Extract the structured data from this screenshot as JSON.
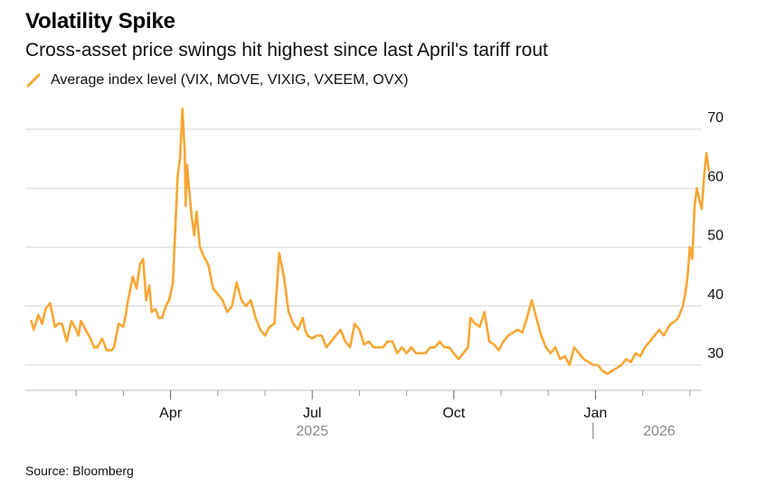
{
  "chart_data": {
    "type": "line",
    "title": "Volatility Spike",
    "subtitle": "Cross-asset price swings hit highest since last April's tariff rout",
    "legend": "Average index level (VIX, MOVE, VIXIG, VXEEM, OVX)",
    "source": "Source: Bloomberg",
    "ylim": [
      26,
      74
    ],
    "yticks": [
      30,
      40,
      50,
      60,
      70
    ],
    "xlim": [
      0,
      14.55
    ],
    "xticks": [
      {
        "pos": 3,
        "label": "Apr"
      },
      {
        "pos": 6,
        "label": "Jul"
      },
      {
        "pos": 9,
        "label": "Oct"
      },
      {
        "pos": 12,
        "label": "Jan"
      }
    ],
    "minor_ticks": [
      1,
      2,
      4,
      5,
      7,
      8,
      10,
      11,
      13,
      14
    ],
    "year_labels": [
      {
        "pos": 6,
        "label": "2025"
      },
      {
        "pos": 13.35,
        "label": "2026"
      }
    ],
    "year_divider": 11.95,
    "grid": true,
    "color": "#F7A734",
    "series": [
      {
        "name": "Average index level (VIX, MOVE, VIXIG, VXEEM, OVX)",
        "x": [
          0.05,
          0.1,
          0.2,
          0.28,
          0.35,
          0.45,
          0.55,
          0.62,
          0.7,
          0.8,
          0.9,
          1.0,
          1.05,
          1.1,
          1.2,
          1.3,
          1.38,
          1.45,
          1.55,
          1.65,
          1.75,
          1.8,
          1.9,
          2.0,
          2.05,
          2.1,
          2.2,
          2.28,
          2.35,
          2.42,
          2.48,
          2.55,
          2.6,
          2.68,
          2.75,
          2.82,
          2.9,
          2.97,
          3.05,
          3.15,
          3.2,
          3.25,
          3.3,
          3.32,
          3.35,
          3.4,
          3.45,
          3.5,
          3.55,
          3.62,
          3.7,
          3.8,
          3.9,
          4.0,
          4.1,
          4.2,
          4.3,
          4.4,
          4.5,
          4.6,
          4.7,
          4.8,
          4.9,
          5.0,
          5.1,
          5.2,
          5.3,
          5.4,
          5.5,
          5.6,
          5.7,
          5.8,
          5.85,
          5.9,
          6.0,
          6.1,
          6.2,
          6.3,
          6.4,
          6.5,
          6.6,
          6.7,
          6.8,
          6.9,
          7.0,
          7.1,
          7.2,
          7.3,
          7.4,
          7.5,
          7.6,
          7.7,
          7.8,
          7.9,
          8.0,
          8.1,
          8.2,
          8.3,
          8.4,
          8.5,
          8.6,
          8.7,
          8.8,
          8.9,
          9.0,
          9.1,
          9.2,
          9.3,
          9.35,
          9.45,
          9.55,
          9.65,
          9.75,
          9.85,
          9.95,
          10.05,
          10.15,
          10.25,
          10.35,
          10.45,
          10.55,
          10.65,
          10.75,
          10.85,
          10.95,
          11.05,
          11.15,
          11.25,
          11.35,
          11.45,
          11.55,
          11.65,
          11.75,
          11.85,
          11.95,
          12.05,
          12.15,
          12.25,
          12.35,
          12.45,
          12.55,
          12.65,
          12.75,
          12.85,
          12.95,
          13.05,
          13.15,
          13.25,
          13.35,
          13.45,
          13.55,
          13.6,
          13.7,
          13.75,
          13.8,
          13.85,
          13.9,
          13.95,
          14.0,
          14.05,
          14.1,
          14.15,
          14.2,
          14.25,
          14.3,
          14.35,
          14.4
        ],
        "values": [
          37.5,
          36,
          38.5,
          37,
          39.5,
          40.5,
          36.5,
          37,
          37,
          34,
          37.5,
          36,
          35,
          37.5,
          36,
          34.5,
          33,
          33,
          34.5,
          32.5,
          32.5,
          33,
          37,
          36.5,
          38.5,
          41,
          45,
          43,
          47,
          48,
          41,
          43.5,
          39,
          39.5,
          38,
          38,
          40,
          41,
          44,
          62,
          65,
          73.5,
          66,
          57,
          64,
          59,
          55,
          52,
          56,
          50,
          48.5,
          47,
          43,
          42,
          41,
          39,
          40,
          44,
          41,
          40,
          41,
          38,
          36,
          35,
          36.5,
          37,
          49,
          45,
          39,
          37,
          36,
          38,
          36,
          35,
          34.5,
          35,
          35,
          33,
          34,
          35,
          36,
          34,
          33,
          37,
          36,
          33.5,
          34,
          33,
          33,
          33,
          34,
          34,
          32,
          33,
          32,
          33,
          32,
          32,
          32,
          33,
          33,
          34,
          33,
          33,
          32,
          31,
          32,
          33,
          38,
          37,
          36.5,
          39,
          34,
          33.5,
          32.5,
          34,
          35,
          35.5,
          36,
          35.5,
          38,
          41,
          38,
          35,
          33,
          32,
          33,
          31,
          31.5,
          30,
          33,
          32,
          31,
          30.5,
          30,
          30,
          29,
          28.5,
          29,
          29.5,
          30,
          31,
          30.5,
          32,
          31.5,
          33,
          34,
          35,
          36,
          35,
          36.5,
          37,
          37.5,
          38,
          39,
          40,
          42,
          45,
          50,
          48,
          57,
          60,
          58,
          56.5,
          62,
          66,
          63
        ]
      }
    ]
  }
}
